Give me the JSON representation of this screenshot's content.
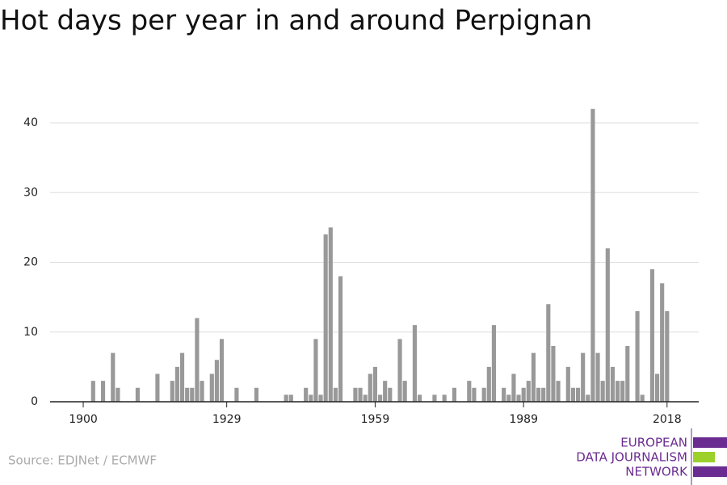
{
  "chart_data": {
    "type": "bar",
    "title": "Hot days per year in and around Perpignan",
    "source": "Source: EDJNet / ECMWF",
    "logo": [
      "EUROPEAN",
      "DATA JOURNALISM",
      "NETWORK"
    ],
    "x": [
      1902,
      1904,
      1906,
      1907,
      1911,
      1915,
      1918,
      1919,
      1920,
      1921,
      1922,
      1923,
      1924,
      1926,
      1927,
      1928,
      1931,
      1935,
      1941,
      1942,
      1945,
      1946,
      1947,
      1948,
      1949,
      1950,
      1951,
      1952,
      1955,
      1956,
      1957,
      1958,
      1959,
      1960,
      1961,
      1962,
      1964,
      1965,
      1967,
      1968,
      1971,
      1973,
      1975,
      1978,
      1979,
      1981,
      1982,
      1983,
      1985,
      1986,
      1987,
      1988,
      1989,
      1990,
      1991,
      1992,
      1993,
      1994,
      1995,
      1996,
      1998,
      1999,
      2000,
      2001,
      2002,
      2003,
      2004,
      2005,
      2006,
      2007,
      2008,
      2009,
      2010,
      2012,
      2013,
      2015,
      2016,
      2017,
      2018
    ],
    "values": [
      3,
      3,
      7,
      2,
      2,
      4,
      3,
      5,
      7,
      2,
      2,
      12,
      3,
      4,
      6,
      9,
      2,
      2,
      1,
      1,
      2,
      1,
      9,
      1,
      24,
      25,
      2,
      18,
      2,
      2,
      1,
      4,
      5,
      1,
      3,
      2,
      9,
      3,
      11,
      1,
      1,
      1,
      2,
      3,
      2,
      2,
      5,
      11,
      2,
      1,
      4,
      1,
      2,
      3,
      7,
      2,
      2,
      14,
      8,
      3,
      5,
      2,
      2,
      7,
      1,
      42,
      7,
      3,
      22,
      5,
      3,
      3,
      8,
      13,
      1,
      19,
      4,
      17,
      13
    ],
    "color": "#999999",
    "xlim": [
      1893.3,
      2024.4
    ],
    "xticks": [
      1900,
      1929,
      1959,
      1989,
      2018
    ],
    "ylim": [
      0,
      44
    ],
    "yticks": [
      0,
      10,
      20,
      30,
      40
    ],
    "grid": true
  }
}
